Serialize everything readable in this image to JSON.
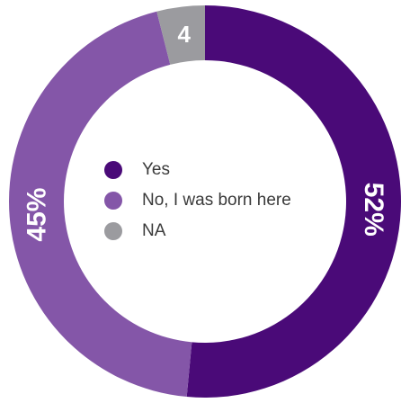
{
  "chart_data": {
    "type": "pie",
    "donut": true,
    "title": "",
    "categories": [
      "Yes",
      "No, I was born here",
      "NA"
    ],
    "values": [
      52,
      45,
      4
    ],
    "data_labels": [
      "52%",
      "45%",
      "4"
    ],
    "colors": [
      "#4a0a78",
      "#8456a8",
      "#9b9b9f"
    ],
    "legend": {
      "placement": "center",
      "items": [
        {
          "label": "Yes",
          "color": "#4a0a78"
        },
        {
          "label": "No, I was born here",
          "color": "#8456a8"
        },
        {
          "label": "NA",
          "color": "#9b9b9f"
        }
      ]
    }
  }
}
